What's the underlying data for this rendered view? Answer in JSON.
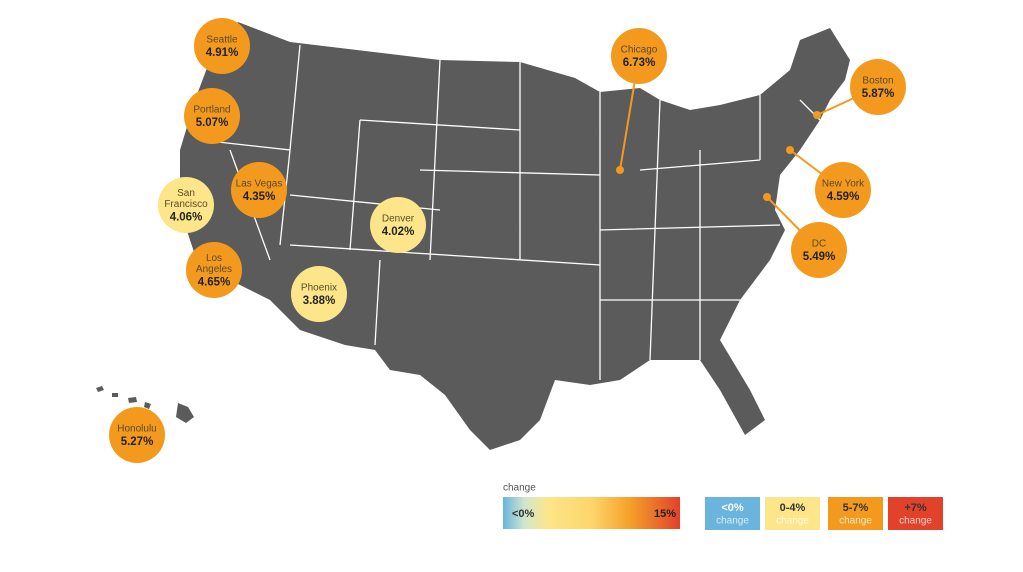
{
  "cities": [
    {
      "name": [
        "Seattle"
      ],
      "value": "4.91%"
    },
    {
      "name": [
        "Portland"
      ],
      "value": "5.07%"
    },
    {
      "name": [
        "San",
        "Francisco"
      ],
      "value": "4.06%"
    },
    {
      "name": [
        "Las Vegas"
      ],
      "value": "4.35%"
    },
    {
      "name": [
        "Los",
        "Angeles"
      ],
      "value": "4.65%"
    },
    {
      "name": [
        "Denver"
      ],
      "value": "4.02%"
    },
    {
      "name": [
        "Phoenix"
      ],
      "value": "3.88%"
    },
    {
      "name": [
        "Chicago"
      ],
      "value": "6.73%"
    },
    {
      "name": [
        "Boston"
      ],
      "value": "5.87%"
    },
    {
      "name": [
        "New York"
      ],
      "value": "4.59%"
    },
    {
      "name": [
        "DC"
      ],
      "value": "5.49%"
    },
    {
      "name": [
        "Honolulu"
      ],
      "value": "5.27%"
    }
  ],
  "legend": {
    "title": "change",
    "scale_low": "<0%",
    "scale_high": "15%",
    "boxes": [
      {
        "label": "<0%",
        "caption": "change"
      },
      {
        "label": "0-4%",
        "caption": "change"
      },
      {
        "label": "5-7%",
        "caption": "change"
      },
      {
        "label": "+7%",
        "caption": "change"
      }
    ]
  }
}
